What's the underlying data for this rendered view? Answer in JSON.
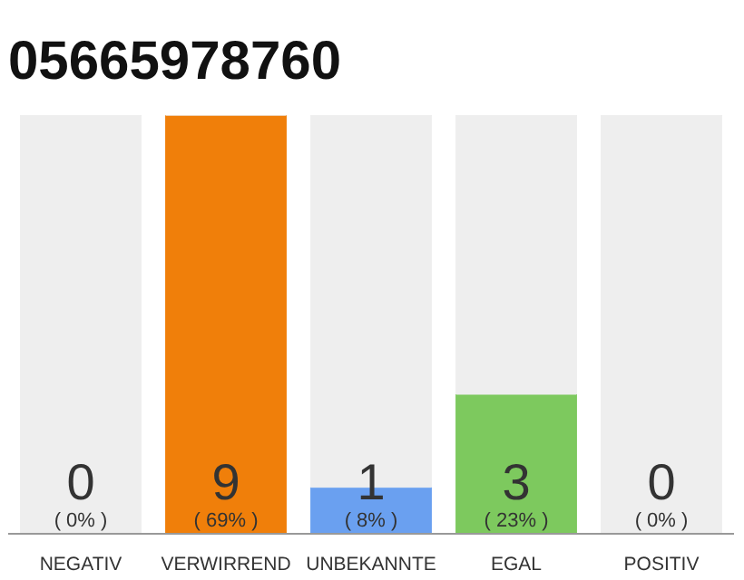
{
  "chart_data": {
    "type": "bar",
    "title": "05665978760",
    "categories": [
      "NEGATIV",
      "VERWIRREND",
      "UNBEKANNTE",
      "EGAL",
      "POSITIV"
    ],
    "stacked": true,
    "series": [
      {
        "colors": [
          "#cccccc",
          "#f07f0a",
          "#6aa0f0",
          "#7dc95e",
          "#cccccc"
        ],
        "values": [
          0,
          9,
          1,
          3,
          0
        ],
        "value_labels": [
          "0\n( 0% )",
          "9\n( 69% )",
          "1\n( 8% )",
          "3\n( 23% )",
          "0\n( 0% )"
        ]
      },
      {
        "color": "#eeeeee",
        "values": [
          9,
          0,
          8,
          6,
          9
        ]
      }
    ],
    "grid": false
  }
}
